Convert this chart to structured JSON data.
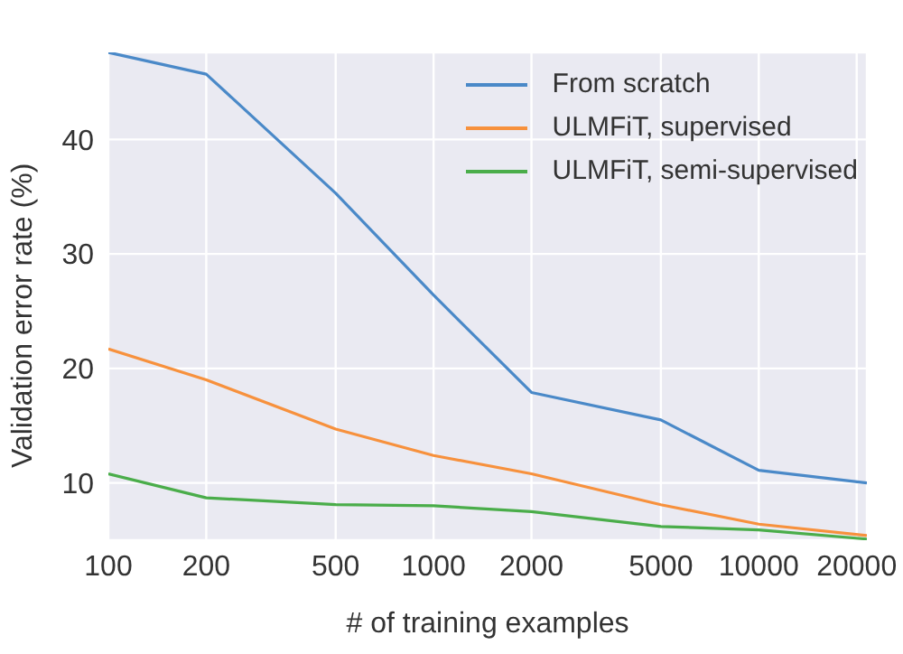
{
  "chart_data": {
    "type": "line",
    "xlabel": "# of training examples",
    "ylabel": "Validation error rate (%)",
    "log": "x",
    "grid": true,
    "legend": "top right",
    "marker": "none",
    "line_style": "solid",
    "x": [
      100,
      200,
      500,
      1000,
      2000,
      5000,
      10000,
      21500
    ],
    "xlim": [
      100,
      21500
    ],
    "xticks": [
      100,
      200,
      500,
      1000,
      2000,
      5000,
      10000,
      20000
    ],
    "ylim": [
      5,
      47.6
    ],
    "yticks": [
      10,
      20,
      30,
      40
    ],
    "series": [
      {
        "name": "From scratch",
        "color": "#4a89c8",
        "values": [
          47.6,
          45.7,
          35.3,
          26.4,
          17.9,
          15.5,
          11.1,
          10.0
        ]
      },
      {
        "name": "ULMFiT, supervised",
        "color": "#f7913d",
        "values": [
          21.7,
          19.0,
          14.7,
          12.4,
          10.8,
          8.1,
          6.4,
          5.4
        ]
      },
      {
        "name": "ULMFiT, semi-supervised",
        "color": "#4aad4a",
        "values": [
          10.8,
          8.7,
          8.1,
          8.0,
          7.5,
          6.2,
          5.9,
          5.1
        ]
      }
    ]
  }
}
